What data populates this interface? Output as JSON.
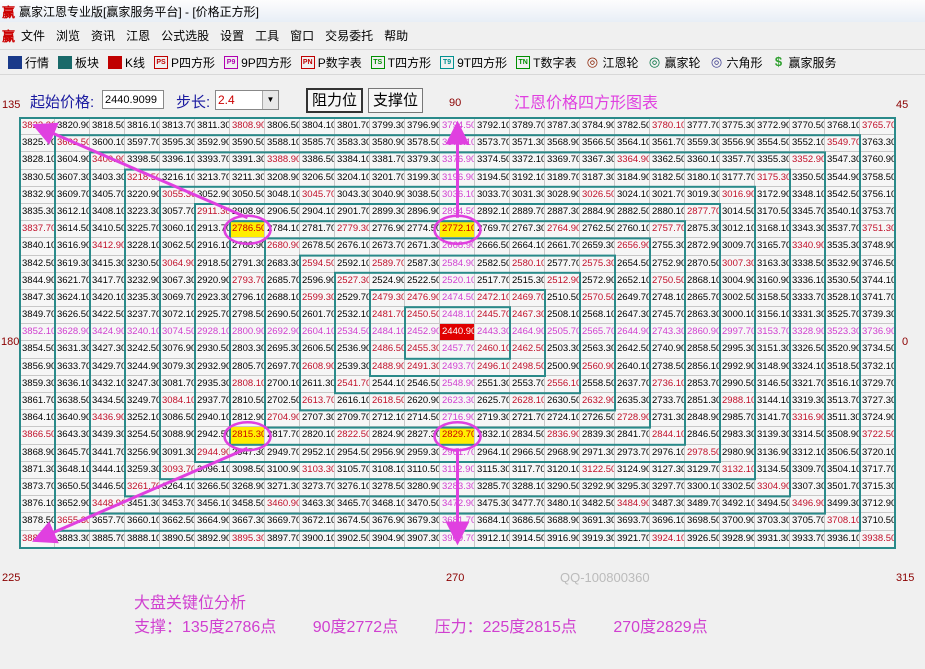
{
  "window": {
    "title": "赢家江恩专业版[赢家服务平台] - [价格正方形]",
    "logo": "赢"
  },
  "menu": {
    "logo": "赢",
    "items": [
      "文件",
      "浏览",
      "资讯",
      "江恩",
      "公式选股",
      "设置",
      "工具",
      "窗口",
      "交易委托",
      "帮助"
    ]
  },
  "toolbar": {
    "items": [
      {
        "label": "行情",
        "icon": "calendar-grid-icon",
        "color": "#1a3a8a",
        "glyph": ""
      },
      {
        "label": "板块",
        "icon": "blocks-icon",
        "color": "#1a6a6a",
        "glyph": ""
      },
      {
        "label": "K线",
        "icon": "candlestick-icon",
        "color": "#c00000",
        "glyph": ""
      },
      {
        "label": "P四方形",
        "icon": "ps-icon",
        "color": "#c00000",
        "glyph": "PS"
      },
      {
        "label": "9P四方形",
        "icon": "p9-icon",
        "color": "#b000b0",
        "glyph": "P9"
      },
      {
        "label": "P数字表",
        "icon": "pn-icon",
        "color": "#c00000",
        "glyph": "PN"
      },
      {
        "label": "T四方形",
        "icon": "ts-icon",
        "color": "#009000",
        "glyph": "TS"
      },
      {
        "label": "9T四方形",
        "icon": "t9-icon",
        "color": "#009090",
        "glyph": "T9"
      },
      {
        "label": "T数字表",
        "icon": "tn-icon",
        "color": "#009000",
        "glyph": "TN"
      },
      {
        "label": "江恩轮",
        "icon": "gann-wheel-icon",
        "color": "#8b2000",
        "glyph": "◎"
      },
      {
        "label": "赢家轮",
        "icon": "winner-wheel-icon",
        "color": "#007040",
        "glyph": "◎"
      },
      {
        "label": "六角形",
        "icon": "hexagon-icon",
        "color": "#404090",
        "glyph": "◎"
      },
      {
        "label": "赢家服务",
        "icon": "dollar-icon",
        "color": "#30a030",
        "glyph": "$"
      }
    ]
  },
  "controls": {
    "start_label": "起始价格:",
    "start_value": "2440.9099",
    "step_label": "步长:",
    "step_value": "2.4",
    "resist_button": "阻力位",
    "support_button": "支撑位",
    "chart_title": "江恩价格四方形图表"
  },
  "angles": {
    "a135": "135",
    "a90": "90",
    "a45": "45",
    "a180": "180",
    "a0": "0",
    "a225": "225",
    "a270": "270",
    "a315": "315"
  },
  "square": {
    "start": 2440.9099,
    "step": 2.4,
    "size": 25,
    "spiral": "counterclockwise",
    "highlighted": [
      "2786.50",
      "2772.10",
      "2815.30",
      "2829.70"
    ]
  },
  "colors": {
    "grid_line": "#2a8a8a",
    "angle_text": "#8b0000",
    "diagonal_text": "#c0102a",
    "cross_text": "#d040d0",
    "center_bg": "#e00000",
    "highlight_bg": "#ffee00",
    "arrow": "#e040e0"
  },
  "watermark": "QQ-100800360",
  "analysis": {
    "title": "大盘关键位分析",
    "support_label": "支撑：135度2786点",
    "support_90": "90度2772点",
    "pressure_label": "压力：225度2815点",
    "pressure_270": "270度2829点"
  }
}
